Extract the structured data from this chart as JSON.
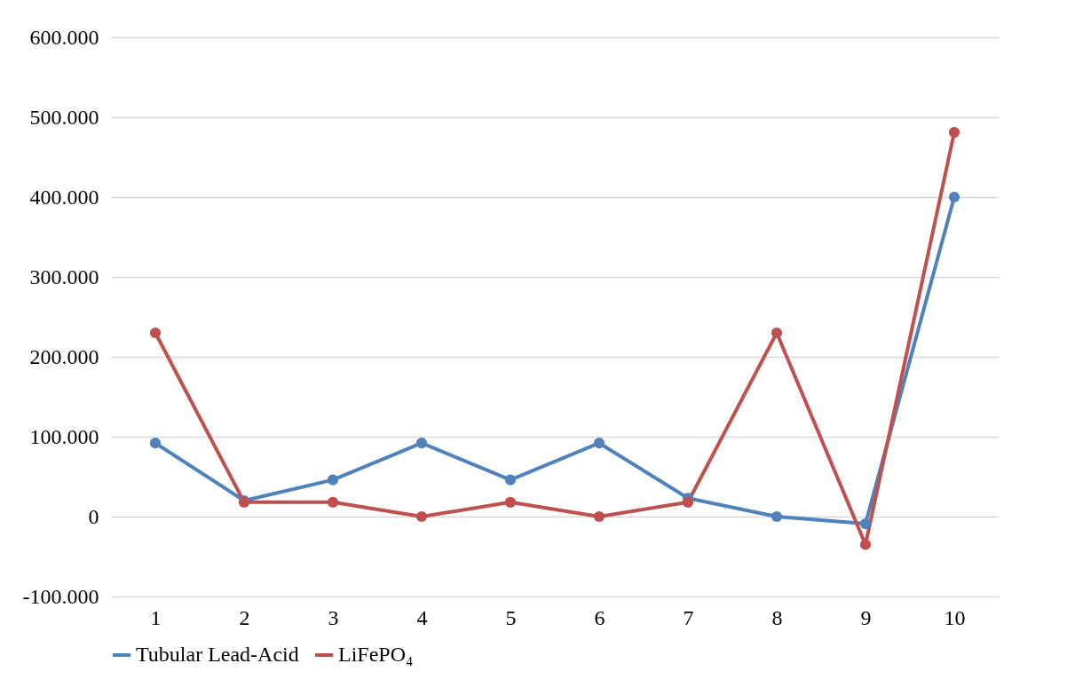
{
  "chart_data": {
    "type": "line",
    "categories": [
      "1",
      "2",
      "3",
      "4",
      "5",
      "6",
      "7",
      "8",
      "9",
      "10"
    ],
    "series": [
      {
        "name": "Tubular Lead-Acid",
        "color": "#4f81bd",
        "values": [
          92000,
          20000,
          46000,
          92000,
          46000,
          92000,
          23000,
          0,
          -9000,
          400000
        ]
      },
      {
        "name": "LiFePO₄",
        "color": "#c0504d",
        "values": [
          230000,
          18000,
          18000,
          0,
          18000,
          0,
          18000,
          230000,
          -35000,
          481000
        ]
      }
    ],
    "ylim": [
      -100000,
      600000
    ],
    "yticks": [
      {
        "value": -100000,
        "label": "-100.000"
      },
      0,
      {
        "value": 100000,
        "label": "100.000"
      },
      {
        "value": 200000,
        "label": "200.000"
      },
      {
        "value": 300000,
        "label": "300.000"
      },
      {
        "value": 400000,
        "label": "400.000"
      },
      {
        "value": 500000,
        "label": "500.000"
      },
      {
        "value": 600000,
        "label": "600.000"
      }
    ],
    "grid": "y",
    "legend": "bottom",
    "marker": "circle",
    "line_style": "solid"
  }
}
